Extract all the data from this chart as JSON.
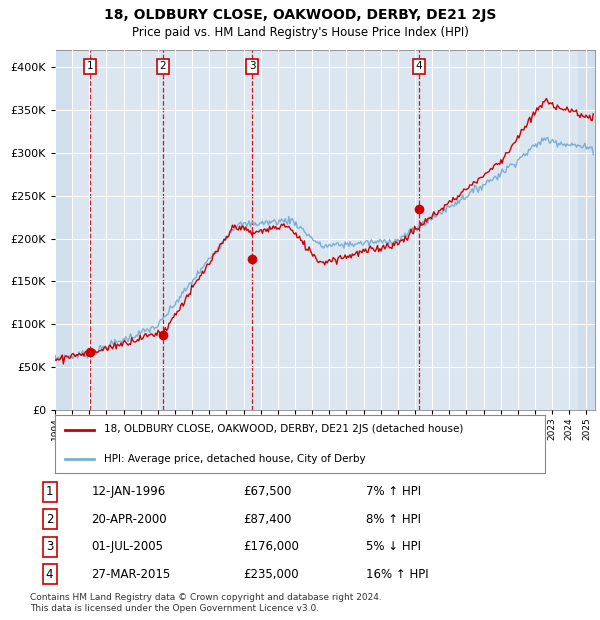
{
  "title": "18, OLDBURY CLOSE, OAKWOOD, DERBY, DE21 2JS",
  "subtitle": "Price paid vs. HM Land Registry's House Price Index (HPI)",
  "hpi_label": "HPI: Average price, detached house, City of Derby",
  "property_label": "18, OLDBURY CLOSE, OAKWOOD, DERBY, DE21 2JS (detached house)",
  "red_color": "#cc0000",
  "blue_color": "#7bafd4",
  "background_chart": "#dce6f1",
  "background_fig": "#ffffff",
  "grid_color": "#ffffff",
  "hatch_color": "#c8d8ea",
  "ylim": [
    0,
    420000
  ],
  "yticks": [
    0,
    50000,
    100000,
    150000,
    200000,
    250000,
    300000,
    350000,
    400000
  ],
  "sale_points": [
    {
      "date": 1996.04,
      "price": 67500,
      "label": "1"
    },
    {
      "date": 2000.3,
      "price": 87400,
      "label": "2"
    },
    {
      "date": 2005.5,
      "price": 176000,
      "label": "3"
    },
    {
      "date": 2015.23,
      "price": 235000,
      "label": "4"
    }
  ],
  "table_rows": [
    {
      "num": "1",
      "date": "12-JAN-1996",
      "price": "£67,500",
      "hpi": "7% ↑ HPI"
    },
    {
      "num": "2",
      "date": "20-APR-2000",
      "price": "£87,400",
      "hpi": "8% ↑ HPI"
    },
    {
      "num": "3",
      "date": "01-JUL-2005",
      "price": "£176,000",
      "hpi": "5% ↓ HPI"
    },
    {
      "num": "4",
      "date": "27-MAR-2015",
      "price": "£235,000",
      "hpi": "16% ↑ HPI"
    }
  ],
  "footnote": "Contains HM Land Registry data © Crown copyright and database right 2024.\nThis data is licensed under the Open Government Licence v3.0.",
  "xmin": 1994.0,
  "xmax": 2025.5
}
